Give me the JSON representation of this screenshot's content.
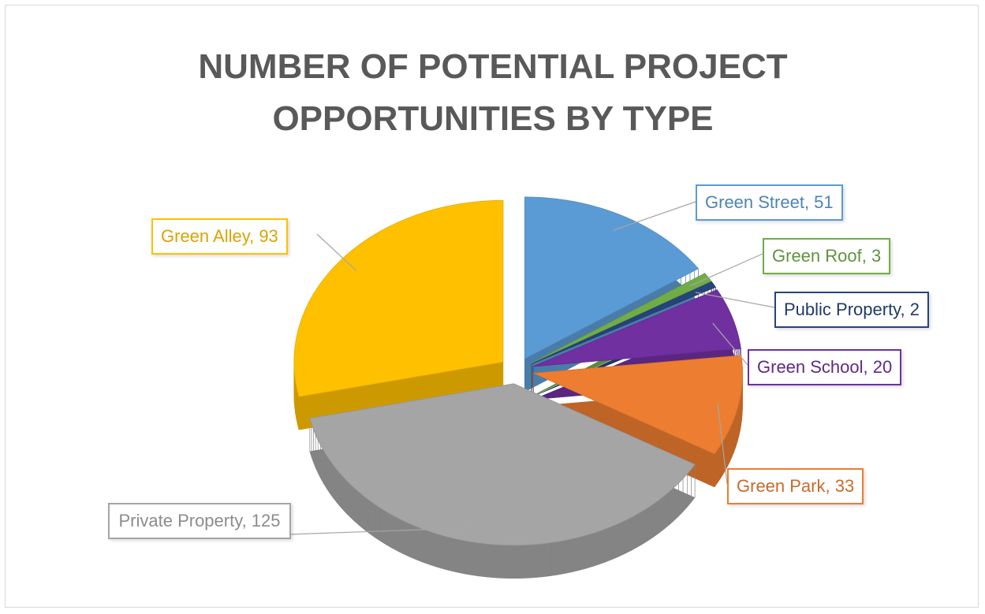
{
  "chart_data": {
    "type": "pie",
    "title": "NUMBER OF POTENTIAL PROJECT OPPORTUNITIES BY TYPE",
    "categories": [
      "Green Street",
      "Green Roof",
      "Public Property",
      "Green School",
      "Green Park",
      "Private Property",
      "Green Alley"
    ],
    "values": [
      51,
      3,
      2,
      20,
      33,
      125,
      93
    ],
    "value_labels": [
      "Green Street, 51",
      "Green Roof, 3",
      "Public Property, 2",
      "Green School, 20",
      "Green Park, 33",
      "Private Property, 125",
      "Green Alley, 93"
    ],
    "colors": [
      "#5b9bd5",
      "#70ad47",
      "#264478",
      "#7030a0",
      "#ed7d31",
      "#a5a5a5",
      "#ffc000"
    ]
  }
}
